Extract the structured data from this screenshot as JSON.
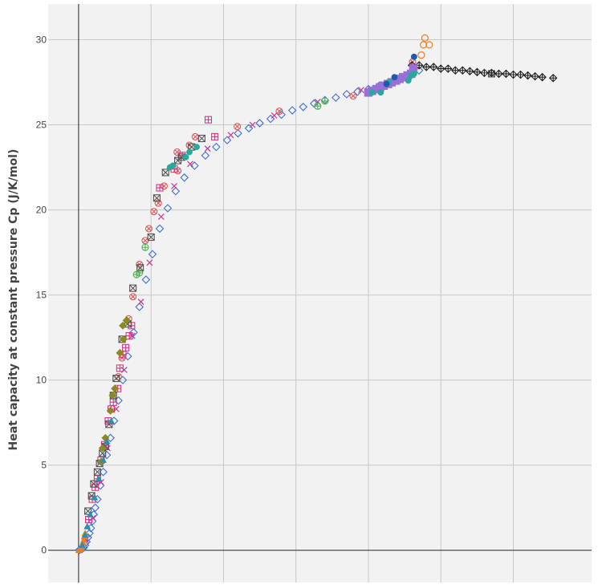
{
  "chart_data": {
    "type": "scatter",
    "title": "",
    "xlabel": "",
    "ylabel": "Heat capacity at constant pressure Cp (J/K/mol)",
    "xlim": [
      -4.2,
      70.8
    ],
    "ylim": [
      -1.9,
      32.1
    ],
    "x_grid": [
      0,
      10,
      20,
      30,
      40,
      50,
      60
    ],
    "y_ticks": [
      0,
      5,
      10,
      15,
      20,
      25,
      30
    ],
    "grid": true,
    "legend": "none",
    "series": [
      {
        "color": "#3b6fd6",
        "marker": "diamond-open",
        "points": [
          [
            0.1,
            0.02
          ],
          [
            0.3,
            0.05
          ],
          [
            0.5,
            0.08
          ],
          [
            0.7,
            0.15
          ],
          [
            0.9,
            0.3
          ],
          [
            1.1,
            0.5
          ],
          [
            1.3,
            0.75
          ],
          [
            1.5,
            1.0
          ],
          [
            1.7,
            1.3
          ],
          [
            1.9,
            1.7
          ],
          [
            2.1,
            2.1
          ],
          [
            2.3,
            2.5
          ],
          [
            2.6,
            3.0
          ],
          [
            3.0,
            3.8
          ],
          [
            3.4,
            4.6
          ],
          [
            3.9,
            5.6
          ],
          [
            4.4,
            6.6
          ],
          [
            4.9,
            7.6
          ],
          [
            5.5,
            8.8
          ],
          [
            6.1,
            10.0
          ],
          [
            6.8,
            11.4
          ],
          [
            7.6,
            12.8
          ],
          [
            8.4,
            14.3
          ],
          [
            9.3,
            15.9
          ],
          [
            10.2,
            17.4
          ],
          [
            11.2,
            18.9
          ],
          [
            12.3,
            20.1
          ],
          [
            13.4,
            21.1
          ],
          [
            14.6,
            21.9
          ],
          [
            16.0,
            22.6
          ],
          [
            17.5,
            23.2
          ],
          [
            19.0,
            23.7
          ],
          [
            20.5,
            24.1
          ],
          [
            22.0,
            24.5
          ],
          [
            23.5,
            24.8
          ],
          [
            25.0,
            25.1
          ],
          [
            26.5,
            25.35
          ],
          [
            28.0,
            25.6
          ],
          [
            29.5,
            25.85
          ],
          [
            31.0,
            26.05
          ],
          [
            32.5,
            26.25
          ],
          [
            34.0,
            26.45
          ],
          [
            35.5,
            26.6
          ],
          [
            37.0,
            26.8
          ],
          [
            38.5,
            26.95
          ],
          [
            40.0,
            27.1
          ],
          [
            41.5,
            27.3
          ],
          [
            43.0,
            27.5
          ],
          [
            44.5,
            27.7
          ],
          [
            46.0,
            27.95
          ],
          [
            47.0,
            28.2
          ]
        ]
      },
      {
        "color": "#c2419b",
        "marker": "x",
        "points": [
          [
            1.0,
            0.6
          ],
          [
            2.0,
            1.9
          ],
          [
            3.1,
            4.0
          ],
          [
            4.0,
            6.0
          ],
          [
            5.2,
            8.3
          ],
          [
            6.3,
            10.6
          ],
          [
            7.4,
            12.6
          ],
          [
            8.6,
            14.6
          ],
          [
            9.8,
            16.9
          ],
          [
            11.4,
            19.6
          ],
          [
            13.2,
            21.4
          ],
          [
            15.4,
            22.7
          ],
          [
            17.8,
            23.6
          ],
          [
            21.0,
            24.4
          ],
          [
            24.0,
            25.0
          ],
          [
            27.0,
            25.55
          ],
          [
            33.0,
            26.35
          ],
          [
            39.0,
            27.05
          ],
          [
            45.0,
            27.85
          ]
        ]
      },
      {
        "color": "#e05858",
        "marker": "circle-x",
        "points": [
          [
            5.5,
            10.2
          ],
          [
            6.0,
            11.3
          ],
          [
            6.9,
            13.6
          ],
          [
            7.5,
            14.9
          ],
          [
            8.4,
            16.8
          ],
          [
            9.2,
            18.2
          ],
          [
            9.7,
            18.9
          ],
          [
            10.4,
            19.9
          ],
          [
            11.0,
            20.4
          ],
          [
            11.8,
            21.4
          ],
          [
            13.7,
            22.3
          ],
          [
            13.6,
            23.4
          ],
          [
            15.3,
            23.8
          ],
          [
            16.1,
            24.3
          ],
          [
            21.9,
            24.9
          ],
          [
            27.7,
            25.8
          ],
          [
            37.9,
            26.7
          ],
          [
            43.4,
            27.5
          ],
          [
            46.1,
            28.7
          ]
        ]
      },
      {
        "color": "#d6378a",
        "marker": "square-plus",
        "points": [
          [
            1.4,
            1.8
          ],
          [
            1.9,
            3.0
          ],
          [
            2.3,
            3.7
          ],
          [
            2.6,
            4.2
          ],
          [
            3.1,
            5.3
          ],
          [
            3.6,
            6.2
          ],
          [
            4.1,
            7.6
          ],
          [
            4.5,
            8.3
          ],
          [
            4.8,
            8.7
          ],
          [
            5.4,
            9.5
          ],
          [
            5.7,
            10.7
          ],
          [
            6.1,
            11.5
          ],
          [
            6.5,
            11.9
          ],
          [
            7.0,
            12.6
          ],
          [
            7.3,
            13.2
          ],
          [
            13.2,
            22.4
          ],
          [
            14.3,
            23.2
          ],
          [
            17.9,
            25.3
          ],
          [
            18.8,
            24.3
          ],
          [
            11.2,
            21.3
          ]
        ]
      },
      {
        "color": "#555555",
        "marker": "square-x",
        "points": [
          [
            1.3,
            2.3
          ],
          [
            1.8,
            3.2
          ],
          [
            2.1,
            3.9
          ],
          [
            2.6,
            4.6
          ],
          [
            2.9,
            5.1
          ],
          [
            3.3,
            5.7
          ],
          [
            3.7,
            6.1
          ],
          [
            4.2,
            7.4
          ],
          [
            4.8,
            9.1
          ],
          [
            5.2,
            10.1
          ],
          [
            6.0,
            12.4
          ],
          [
            6.8,
            13.3
          ],
          [
            7.5,
            15.4
          ],
          [
            8.5,
            16.6
          ],
          [
            10.0,
            18.4
          ],
          [
            10.8,
            20.7
          ],
          [
            12.0,
            22.2
          ],
          [
            13.7,
            22.9
          ],
          [
            14.2,
            23.1
          ],
          [
            15.6,
            23.7
          ],
          [
            17.0,
            24.2
          ],
          [
            57.0,
            28.0
          ]
        ]
      },
      {
        "color": "#222222",
        "marker": "diamond-plus",
        "points": [
          [
            46.0,
            28.5
          ],
          [
            47.0,
            28.5
          ],
          [
            48.0,
            28.4
          ],
          [
            49.0,
            28.4
          ],
          [
            50.0,
            28.3
          ],
          [
            51.0,
            28.3
          ],
          [
            52.0,
            28.2
          ],
          [
            53.0,
            28.2
          ],
          [
            54.0,
            28.15
          ],
          [
            55.0,
            28.1
          ],
          [
            56.0,
            28.05
          ],
          [
            57.0,
            28.05
          ],
          [
            58.0,
            28.0
          ],
          [
            59.0,
            28.0
          ],
          [
            60.0,
            27.95
          ],
          [
            61.0,
            27.95
          ],
          [
            62.0,
            27.9
          ],
          [
            63.0,
            27.85
          ],
          [
            64.0,
            27.8
          ],
          [
            65.5,
            27.75
          ]
        ]
      },
      {
        "color": "#ee7d22",
        "marker": "circle-open",
        "points": [
          [
            47.3,
            29.1
          ],
          [
            47.6,
            29.7
          ],
          [
            47.8,
            30.1
          ],
          [
            48.4,
            29.7
          ]
        ]
      },
      {
        "color": "#ee7d22",
        "marker": "triangle",
        "points": [
          [
            0.0,
            0.0
          ],
          [
            0.2,
            0.05
          ],
          [
            0.4,
            0.12
          ],
          [
            0.5,
            0.25
          ],
          [
            0.6,
            0.45
          ],
          [
            0.7,
            0.6
          ],
          [
            0.8,
            0.8
          ],
          [
            0.9,
            1.0
          ]
        ]
      },
      {
        "color": "#8a8a1e",
        "marker": "diamond",
        "points": [
          [
            3.1,
            5.2
          ],
          [
            3.7,
            6.6
          ],
          [
            4.4,
            8.2
          ],
          [
            5.0,
            9.5
          ],
          [
            5.7,
            11.6
          ],
          [
            6.1,
            13.2
          ],
          [
            6.6,
            13.5
          ],
          [
            6.2,
            12.4
          ],
          [
            4.7,
            9.1
          ],
          [
            3.3,
            6.0
          ]
        ]
      },
      {
        "color": "#9b6fd9",
        "marker": "square",
        "points": [
          [
            40.0,
            26.9
          ],
          [
            40.5,
            27.0
          ],
          [
            41.1,
            27.1
          ],
          [
            41.6,
            27.2
          ],
          [
            42.1,
            27.3
          ],
          [
            42.7,
            27.4
          ],
          [
            43.2,
            27.5
          ],
          [
            43.8,
            27.6
          ],
          [
            44.3,
            27.7
          ],
          [
            44.8,
            27.8
          ],
          [
            45.4,
            27.9
          ],
          [
            45.9,
            28.0
          ],
          [
            46.2,
            28.3
          ]
        ]
      },
      {
        "color": "#2aa89a",
        "marker": "circle",
        "points": [
          [
            12.6,
            22.5
          ],
          [
            13.0,
            22.6
          ],
          [
            14.8,
            23.1
          ],
          [
            15.3,
            23.4
          ],
          [
            16.3,
            23.7
          ],
          [
            40.5,
            26.9
          ],
          [
            41.7,
            26.9
          ],
          [
            42.8,
            27.5
          ],
          [
            45.5,
            27.6
          ],
          [
            45.9,
            27.9
          ],
          [
            46.3,
            28.0
          ]
        ]
      },
      {
        "color": "#1e5aa8",
        "marker": "circle",
        "points": [
          [
            46.3,
            29.0
          ],
          [
            43.6,
            27.8
          ],
          [
            42.5,
            27.4
          ]
        ]
      },
      {
        "color": "#4caf50",
        "marker": "circle-plus",
        "points": [
          [
            8.4,
            16.3
          ],
          [
            9.2,
            17.8
          ],
          [
            8.0,
            16.2
          ],
          [
            33.0,
            26.1
          ],
          [
            34.0,
            26.4
          ]
        ]
      },
      {
        "color": "#2a8fb0",
        "marker": "triangle",
        "points": [
          [
            0.5,
            0.3
          ],
          [
            0.9,
            0.9
          ],
          [
            1.2,
            1.4
          ],
          [
            1.6,
            2.1
          ],
          [
            2.2,
            3.1
          ],
          [
            2.8,
            4.2
          ],
          [
            3.4,
            5.3
          ],
          [
            3.9,
            6.4
          ],
          [
            4.5,
            7.6
          ]
        ]
      }
    ]
  }
}
